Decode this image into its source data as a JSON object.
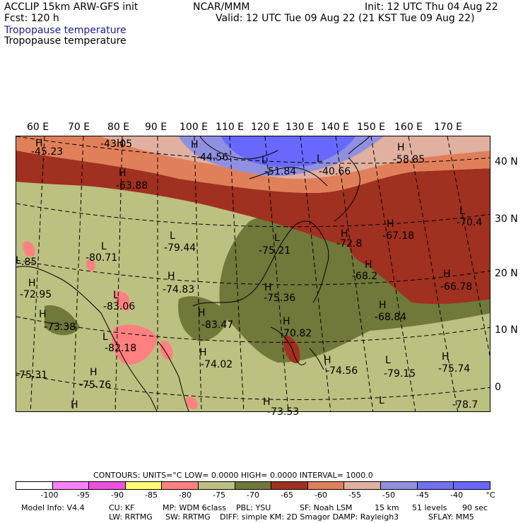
{
  "header": {
    "model": "ACCLIP 15km ARW-GFS init",
    "org": "NCAR/MMM",
    "init": "Init: 12 UTC Thu 04 Aug 22",
    "forecast": "Fcst:  120 h",
    "valid": "Valid: 12 UTC Tue 09 Aug 22 (21 KST Tue 09 Aug 22)",
    "field_title_1": "Tropopause temperature",
    "field_title_2": "Tropopause temperature"
  },
  "map": {
    "longitude_labels": [
      "60 E",
      "70 E",
      "80 E",
      "90 E",
      "100 E",
      "110 E",
      "120 E",
      "130 E",
      "140 E",
      "150 E",
      "160 E",
      "170 E"
    ],
    "latitude_labels": [
      "40 N",
      "30 N",
      "20 N",
      "10 N",
      "0"
    ],
    "colors": {
      "lt_100": "#ffffff",
      "m100_95": "#ff80ff",
      "m95_90": "#f050e0",
      "m90_85": "#ffff70",
      "m85_80": "#ff8080",
      "m80_75": "#bcc080",
      "m75_70": "#70783a",
      "m70_65": "#a03020",
      "m65_60": "#e0805a",
      "m60_55": "#e0b0a0",
      "m55_50": "#9090e0",
      "m50_45": "#7070f0",
      "m45_40": "#6868ff"
    },
    "highs_lows": [
      {
        "mark": "H",
        "value": "-45.23"
      },
      {
        "mark": "H",
        "value": "-43.05"
      },
      {
        "mark": "H",
        "value": "-44.56"
      },
      {
        "mark": "L",
        "value": "-51.84"
      },
      {
        "mark": "L",
        "value": "-40.66"
      },
      {
        "mark": "H",
        "value": "-58.85"
      },
      {
        "mark": "H",
        "value": "-63.88"
      },
      {
        "mark": "L",
        "value": "-70.4"
      },
      {
        "mark": "H",
        "value": "-67.18"
      },
      {
        "mark": "L",
        "value": "-79.44"
      },
      {
        "mark": "L",
        "value": "-80.71"
      },
      {
        "mark": "L",
        "value": "-75.21"
      },
      {
        "mark": "H",
        "value": "-72.8"
      },
      {
        "mark": "L",
        "value": ".85"
      },
      {
        "mark": "H",
        "value": "-68.2"
      },
      {
        "mark": "H",
        "value": "-66.78"
      },
      {
        "mark": "H",
        "value": "-72.95"
      },
      {
        "mark": "H",
        "value": "-74.83"
      },
      {
        "mark": "H",
        "value": "-75.36"
      },
      {
        "mark": "L",
        "value": "-83.06"
      },
      {
        "mark": "H",
        "value": "-68.84"
      },
      {
        "mark": "H",
        "value": "-73.38"
      },
      {
        "mark": "H",
        "value": "-83.47"
      },
      {
        "mark": "H",
        "value": "-70.82"
      },
      {
        "mark": "L",
        "value": "-82.18"
      },
      {
        "mark": "H",
        "value": "-74.02"
      },
      {
        "mark": "H",
        "value": "-74.56"
      },
      {
        "mark": "L",
        "value": "-79.15"
      },
      {
        "mark": "H",
        "value": "-75.74"
      },
      {
        "mark": "H",
        "value": "-75.31"
      },
      {
        "mark": "H",
        "value": "-75.76"
      },
      {
        "mark": "H",
        "value": "-73.53"
      },
      {
        "mark": "L",
        "value": "-78.7"
      }
    ]
  },
  "legend": {
    "contours_label": "CONTOURS:  UNITS=°C  LOW=  0.0000          HIGH=  0.0000          INTERVAL=   1000.0",
    "ticks": [
      "-100",
      "-95",
      "-90",
      "-85",
      "-80",
      "-75",
      "-70",
      "-65",
      "-60",
      "-55",
      "-50",
      "-45",
      "-40",
      "°C"
    ]
  },
  "footer": {
    "model_info": "Model Info: V4.4",
    "cu": "CU: KF",
    "mp": "MP: WDM 6class",
    "pbl": "PBL: YSU",
    "sf": "SF: Noah LSM",
    "res": "15 km",
    "levels": "51 levels",
    "dt": "90 sec",
    "lw": "LW: RRTMG",
    "sw": "SW: RRTMG",
    "diff": "DIFF: simple KM: 2D Smagor DAMP: Rayleigh3",
    "sflay": "SFLAY: MM5"
  }
}
